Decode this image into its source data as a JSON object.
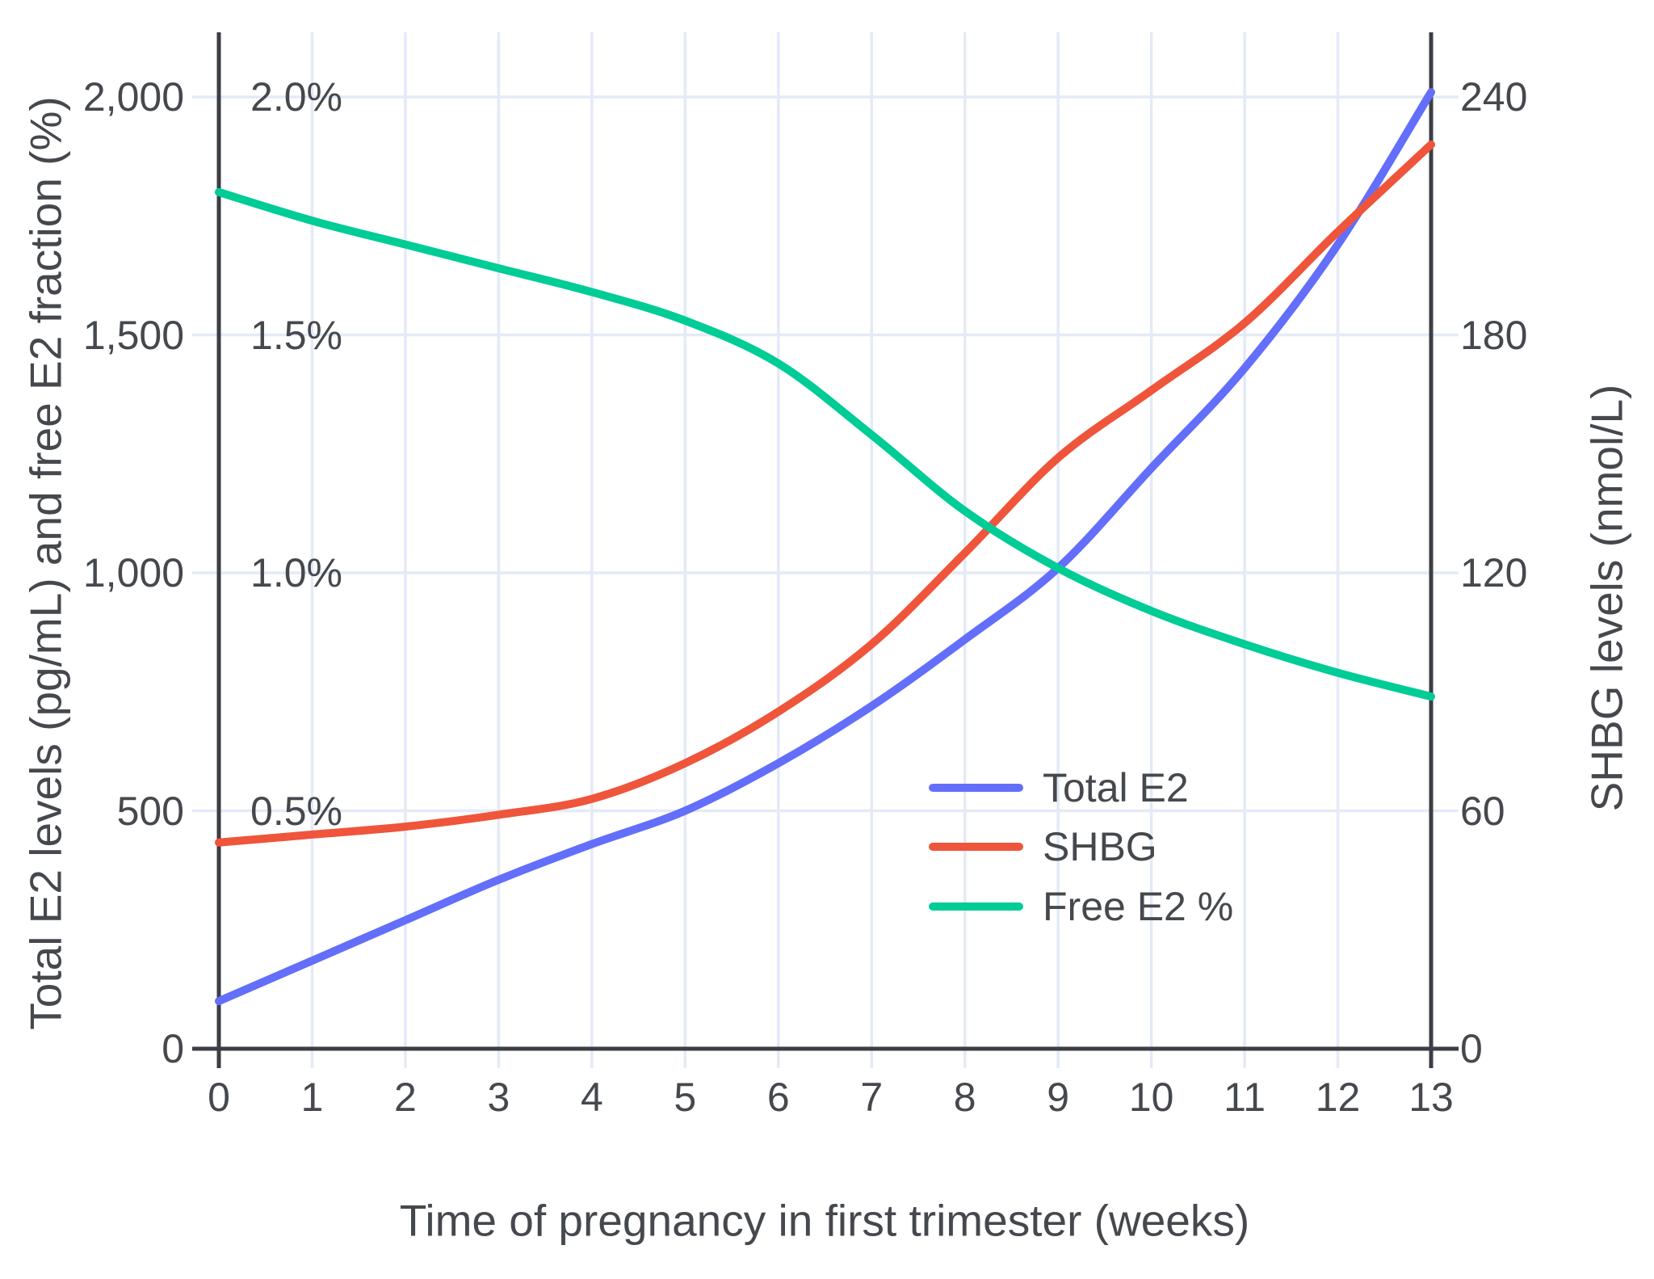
{
  "chart": {
    "titles": {
      "left": "Total E2 levels (pg/mL) and free E2 fraction (%)",
      "right": "SHBG levels (nmol/L)",
      "bottom": "Time of pregnancy in first trimester (weeks)"
    },
    "legend": {
      "items": [
        {
          "label": "Total E2",
          "color": "#636EFA"
        },
        {
          "label": "SHBG",
          "color": "#EF553B"
        },
        {
          "label": "Free E2 %",
          "color": "#00CC96"
        }
      ]
    },
    "colors": {
      "background": "#ffffff",
      "gridline": "#E4EAF6",
      "axis_line": "#3B3E44",
      "text": "#45484D"
    }
  },
  "chart_data": {
    "type": "line",
    "title": "",
    "xlabel": "Time of pregnancy in first trimester (weeks)",
    "ylabel_left": "Total E2 levels (pg/mL) and free E2 fraction (%)",
    "ylabel_right": "SHBG levels (nmol/L)",
    "x": [
      0,
      1,
      2,
      3,
      4,
      5,
      6,
      7,
      8,
      9,
      10,
      11,
      12,
      13
    ],
    "xlim": [
      0,
      13
    ],
    "ylim_left": [
      0,
      2135
    ],
    "ylim_right": [
      0,
      256
    ],
    "grid": true,
    "legend_position": "center-right, no border",
    "series": [
      {
        "name": "Total E2",
        "axis": "left",
        "unit": "pg/mL",
        "color": "#636EFA",
        "values": [
          100,
          185,
          270,
          355,
          430,
          500,
          600,
          720,
          860,
          1010,
          1220,
          1430,
          1690,
          2010
        ]
      },
      {
        "name": "SHBG",
        "axis": "right",
        "unit": "nmol/L",
        "color": "#EF553B",
        "values": [
          52,
          54,
          56,
          59,
          63,
          72,
          85,
          102,
          125,
          149,
          166,
          183,
          206,
          228
        ]
      },
      {
        "name": "Free E2 %",
        "axis": "left_percent",
        "unit": "%",
        "note": "plotted on left axis as percent x 1000 (1.0% aligns with 1,000)",
        "color": "#00CC96",
        "values": [
          1.8,
          1.74,
          1.69,
          1.64,
          1.59,
          1.53,
          1.44,
          1.29,
          1.13,
          1.01,
          0.92,
          0.85,
          0.79,
          0.74
        ]
      }
    ],
    "axes": {
      "left": {
        "ticks": [
          {
            "v": 0,
            "label": "0"
          },
          {
            "v": 500,
            "label": "500"
          },
          {
            "v": 1000,
            "label": "1,000"
          },
          {
            "v": 1500,
            "label": "1,500"
          },
          {
            "v": 2000,
            "label": "2,000"
          }
        ]
      },
      "left_percent": {
        "labels": [
          {
            "v": 500,
            "label": "0.5%"
          },
          {
            "v": 1000,
            "label": "1.0%"
          },
          {
            "v": 1500,
            "label": "1.5%"
          },
          {
            "v": 2000,
            "label": "2.0%"
          }
        ]
      },
      "right": {
        "ticks": [
          {
            "v": 0,
            "label": "0"
          },
          {
            "v": 60,
            "label": "60"
          },
          {
            "v": 120,
            "label": "120"
          },
          {
            "v": 180,
            "label": "180"
          },
          {
            "v": 240,
            "label": "240"
          }
        ]
      },
      "x": {
        "ticks": [
          "0",
          "1",
          "2",
          "3",
          "4",
          "5",
          "6",
          "7",
          "8",
          "9",
          "10",
          "11",
          "12",
          "13"
        ]
      }
    }
  }
}
